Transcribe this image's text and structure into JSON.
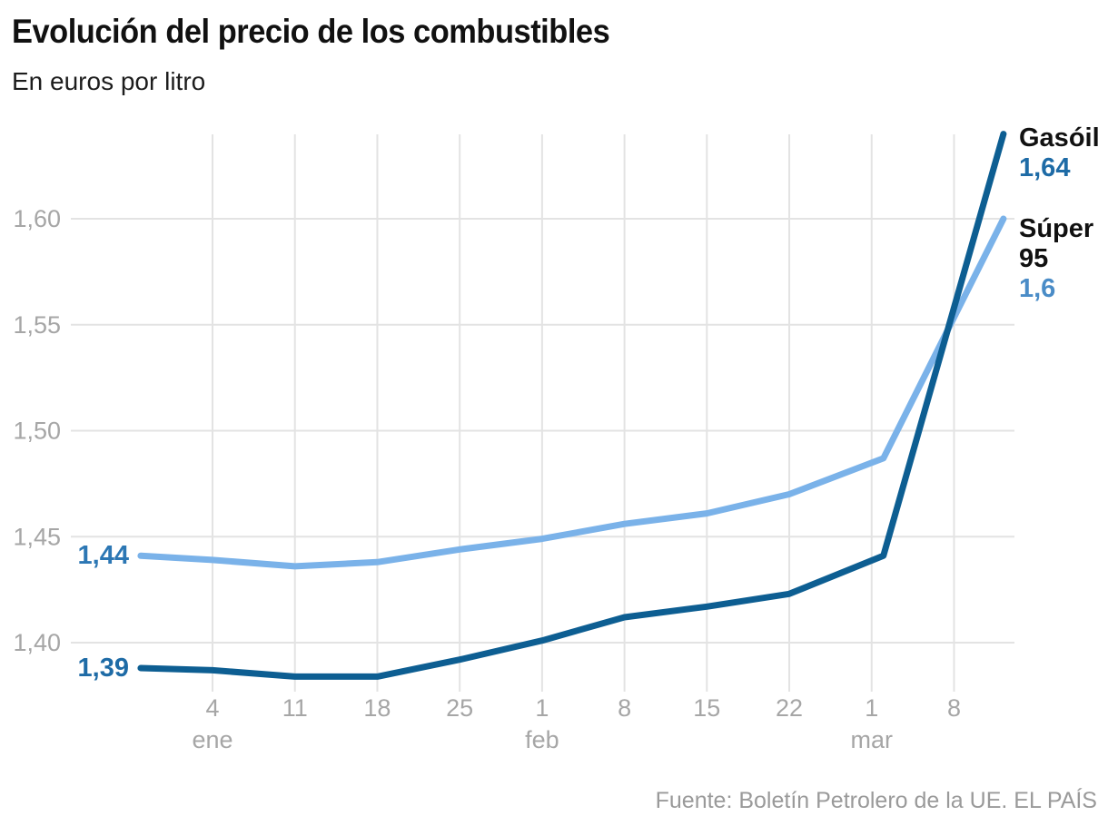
{
  "chart_data": {
    "type": "line",
    "title": "Evolución del precio de los combustibles",
    "unit_label": "En euros por litro",
    "source": "Fuente: Boletín Petrolero de la UE. EL PAÍS",
    "grid": true,
    "legend_position": "end-of-line-labels",
    "colors": {
      "grid": "#e3e3e3",
      "axis_label": "#a6a6a6",
      "title": "#111111",
      "subtitle": "#1d1d1d",
      "source": "#9a9a9a"
    },
    "y_axis": {
      "label": "euros por litro",
      "range": [
        1.377,
        1.64
      ],
      "decimal_separator": ",",
      "ticks": [
        {
          "value": 1.6,
          "label": "1,60"
        },
        {
          "value": 1.55,
          "label": "1,55"
        },
        {
          "value": 1.5,
          "label": "1,50"
        },
        {
          "value": 1.45,
          "label": "1,45"
        },
        {
          "value": 1.4,
          "label": "1,40"
        }
      ]
    },
    "x_axis": {
      "range_days": [
        -6.1,
        67.2
      ],
      "ticks": [
        {
          "day": 0,
          "label": "4",
          "month": "ene"
        },
        {
          "day": 7,
          "label": "11",
          "month": ""
        },
        {
          "day": 14,
          "label": "18",
          "month": ""
        },
        {
          "day": 21,
          "label": "25",
          "month": ""
        },
        {
          "day": 28,
          "label": "1",
          "month": "feb"
        },
        {
          "day": 35,
          "label": "8",
          "month": ""
        },
        {
          "day": 42,
          "label": "15",
          "month": ""
        },
        {
          "day": 49,
          "label": "22",
          "month": ""
        },
        {
          "day": 56,
          "label": "1",
          "month": "mar"
        },
        {
          "day": 63,
          "label": "8",
          "month": ""
        }
      ]
    },
    "series": [
      {
        "name": "Gasóil",
        "color": "#0d5e92",
        "start_label": "1,39",
        "end_label": "1,64",
        "start_label_color": "#1e6ba6",
        "end_label_color": "#1e6ba6",
        "points": [
          [
            -6.1,
            1.388
          ],
          [
            0,
            1.387
          ],
          [
            7,
            1.384
          ],
          [
            14,
            1.384
          ],
          [
            21,
            1.392
          ],
          [
            28,
            1.401
          ],
          [
            35,
            1.412
          ],
          [
            42,
            1.417
          ],
          [
            49,
            1.423
          ],
          [
            57,
            1.441
          ],
          [
            67.2,
            1.64
          ]
        ]
      },
      {
        "name": "Súper 95",
        "color": "#7ab2e9",
        "start_label": "1,44",
        "end_label": "1,6",
        "start_label_color": "#2c77b4",
        "end_label_color": "#4a8cc7",
        "points": [
          [
            -6.1,
            1.441
          ],
          [
            0,
            1.439
          ],
          [
            7,
            1.436
          ],
          [
            14,
            1.438
          ],
          [
            21,
            1.444
          ],
          [
            28,
            1.449
          ],
          [
            35,
            1.456
          ],
          [
            42,
            1.461
          ],
          [
            49,
            1.47
          ],
          [
            57,
            1.487
          ],
          [
            67.2,
            1.6
          ]
        ]
      }
    ]
  }
}
